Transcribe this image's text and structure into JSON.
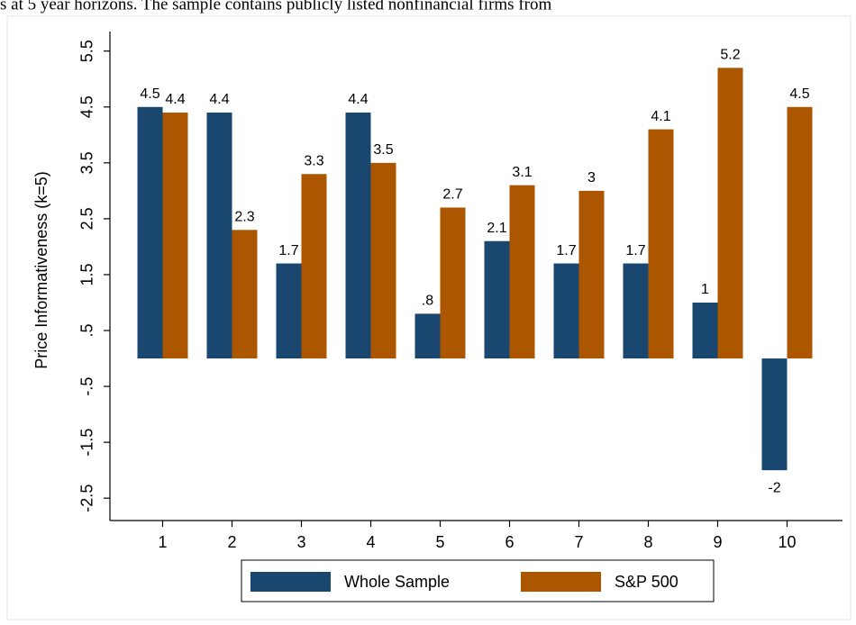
{
  "caption": "s at 5 year horizons. The sample contains publicly listed nonfinancial firms from",
  "chart_data": {
    "type": "bar",
    "y_label": "Price Informativeness (k=5)",
    "categories": [
      "1",
      "2",
      "3",
      "4",
      "5",
      "6",
      "7",
      "8",
      "9",
      "10"
    ],
    "series": [
      {
        "name": "Whole Sample",
        "color": "#1a476f",
        "values": [
          4.5,
          4.4,
          1.7,
          4.4,
          0.8,
          2.1,
          1.7,
          1.7,
          1,
          -2
        ],
        "value_labels": [
          "4.5",
          "4.4",
          "1.7",
          "4.4",
          ".8",
          "2.1",
          "1.7",
          "1.7",
          "1",
          "-2"
        ]
      },
      {
        "name": "S&P 500",
        "color": "#ad5600",
        "values": [
          4.4,
          2.3,
          3.3,
          3.5,
          2.7,
          3.1,
          3,
          4.1,
          5.2,
          4.5
        ]
      }
    ],
    "ylim": [
      -2.9,
      5.85
    ],
    "yticks": [
      5.5,
      4.5,
      3.5,
      2.5,
      1.5,
      {
        "value": 0.5,
        "label": ".5"
      },
      {
        "value": -0.5,
        "label": "-.5"
      },
      -1.5,
      -2.5
    ],
    "grid": false,
    "legend": "bottom"
  }
}
